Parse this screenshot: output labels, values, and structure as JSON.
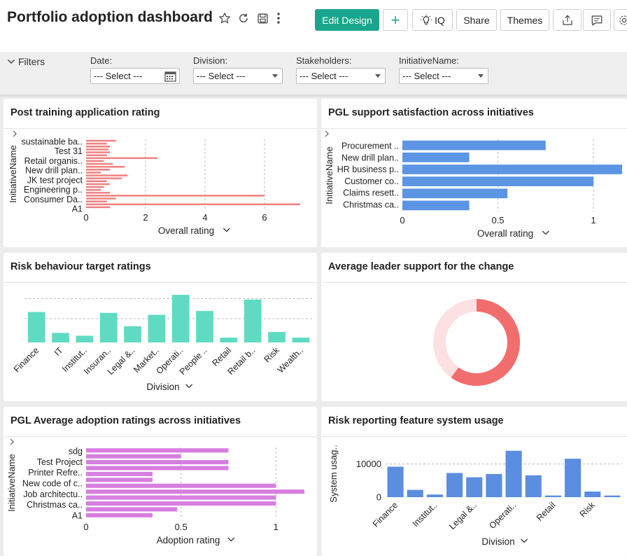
{
  "header": {
    "title": "Portfolio adoption dashboard",
    "buttons": {
      "edit_design": "Edit Design",
      "add": "+",
      "iq": "IQ",
      "share": "Share",
      "themes": "Themes"
    },
    "icons": [
      "star-icon",
      "refresh-icon",
      "save-icon",
      "more-icon",
      "lightbulb-icon",
      "export-icon",
      "comment-icon",
      "settings-icon"
    ],
    "accent_color": "#19a68c"
  },
  "filters": {
    "toggle_label": "Filters",
    "items": [
      {
        "label": "Date:",
        "value": "--- Select ---"
      },
      {
        "label": "Division:",
        "value": "--- Select ---"
      },
      {
        "label": "Stakeholders:",
        "value": "--- Select ---"
      },
      {
        "label": "InitiativeName:",
        "value": "--- Select ---"
      }
    ]
  },
  "panels": [
    {
      "title": "Post training application rating"
    },
    {
      "title": "PGL support satisfaction across initiatives"
    },
    {
      "title": "Risk behaviour target ratings"
    },
    {
      "title": "Average leader support for the change"
    },
    {
      "title": "PGL Average adoption ratings across initiatives"
    },
    {
      "title": "Risk reporting feature system usage"
    }
  ],
  "chart_data": [
    {
      "type": "bar",
      "orientation": "horizontal",
      "title": "Post training application rating",
      "xlabel": "Overall rating",
      "ylabel": "InitiativeName",
      "xlim": [
        0,
        7.2
      ],
      "xticks": [
        0,
        2,
        4,
        6
      ],
      "y_tick_labels": [
        "sustainable ba..",
        "Test 31",
        "Retail organis..",
        "New drill plan..",
        "JK test project",
        "Engineering p..",
        "Consumer Da..",
        "A1"
      ],
      "values": [
        1.0,
        0.7,
        0.8,
        0.75,
        0.8,
        0.7,
        2.4,
        0.6,
        0.9,
        1.3,
        0.8,
        0.5,
        1.4,
        1.2,
        0.7,
        0.8,
        0.6,
        0.5,
        0.8,
        6.0,
        1.0,
        0.7,
        7.2,
        0.8
      ],
      "color": "#f08080",
      "grid": true
    },
    {
      "type": "bar",
      "orientation": "horizontal",
      "title": "PGL support satisfaction across initiatives",
      "xlabel": "Overall rating",
      "ylabel": "InitiativeName",
      "categories": [
        "Procurement ..",
        "New drill plan..",
        "HR business p..",
        "Customer co..",
        "Claims resett..",
        "Christmas ca.."
      ],
      "values": [
        0.75,
        0.35,
        1.15,
        1.0,
        0.55,
        0.35
      ],
      "xlim": [
        0,
        1.15
      ],
      "xticks": [
        0,
        0.5,
        1
      ],
      "color": "#5c95e3",
      "grid": true
    },
    {
      "type": "bar",
      "orientation": "vertical",
      "title": "Risk behaviour target ratings",
      "xlabel": "Division",
      "categories": [
        "Finance",
        "IT",
        "Institut..",
        "Insuran..",
        "Legal &..",
        "Market..",
        "Operati..",
        "People ..",
        "Retail",
        "Retail b..",
        "Risk",
        "Wealth.."
      ],
      "values": [
        3.2,
        1.0,
        0.7,
        3.1,
        1.7,
        2.9,
        5.0,
        3.3,
        0.5,
        4.5,
        1.1,
        0.5
      ],
      "ylim": [
        0,
        5.0
      ],
      "color": "#5fdbc2",
      "grid": true
    },
    {
      "type": "pie",
      "style": "donut",
      "title": "Average leader support for the change",
      "slices": [
        {
          "value": 0.6,
          "color": "#f26d6d"
        },
        {
          "value": 0.4,
          "color": "#fce0e2"
        }
      ]
    },
    {
      "type": "bar",
      "orientation": "horizontal",
      "title": "PGL Average adoption ratings across initiatives",
      "xlabel": "Adoption rating",
      "ylabel": "InitiativeName",
      "xlim": [
        0,
        1.15
      ],
      "xticks": [
        0,
        0.5,
        1
      ],
      "y_tick_labels": [
        "sdg",
        "Test Project",
        "Printer Refre..",
        "New code of c..",
        "Job architectu..",
        "Christmas ca..",
        "A1"
      ],
      "values": [
        0.75,
        0.5,
        0.75,
        0.75,
        0.35,
        0.35,
        1.0,
        1.15,
        1.0,
        1.0,
        0.48,
        0.35
      ],
      "color": "#d77ee0",
      "grid": true
    },
    {
      "type": "bar",
      "orientation": "vertical",
      "title": "Risk reporting feature system usage",
      "xlabel": "Division",
      "ylabel": "System usag..",
      "x_tick_labels": [
        "Finance",
        "Institut..",
        "Legal &..",
        "Operati..",
        "Retail",
        "Risk"
      ],
      "values": [
        9200,
        2200,
        800,
        7300,
        6000,
        7000,
        14000,
        6600,
        500,
        11600,
        1700,
        500
      ],
      "ylim": [
        0,
        15000
      ],
      "yticks": [
        0,
        10000
      ],
      "color": "#5b8de0",
      "grid": true
    }
  ]
}
